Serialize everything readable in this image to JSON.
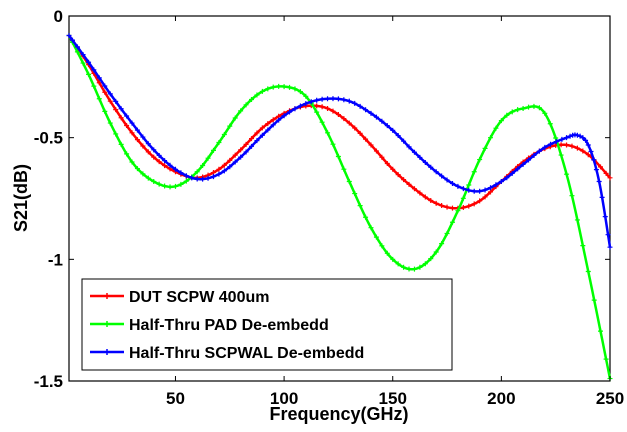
{
  "chart_data": {
    "type": "line",
    "xlabel": "Frequency(GHz)",
    "ylabel": "S21(dB)",
    "xlim": [
      1,
      250
    ],
    "ylim": [
      -1.5,
      0
    ],
    "xticks": [
      50,
      100,
      150,
      200,
      250
    ],
    "xtick_labels": [
      "50",
      "100",
      "150",
      "200",
      "250"
    ],
    "yticks": [
      0,
      -0.5,
      -1,
      -1.5
    ],
    "ytick_labels": [
      "0",
      "-0.5",
      "-1",
      "-1.5"
    ],
    "grid": false,
    "legend_position": "bottom-left",
    "series": [
      {
        "name": "DUT SCPW 400um",
        "color": "#ff0000",
        "x": [
          1,
          10,
          20,
          30,
          40,
          50,
          60,
          70,
          80,
          90,
          100,
          110,
          120,
          130,
          140,
          150,
          160,
          170,
          180,
          190,
          200,
          210,
          220,
          230,
          240,
          250
        ],
        "y": [
          -0.08,
          -0.2,
          -0.35,
          -0.48,
          -0.58,
          -0.64,
          -0.665,
          -0.63,
          -0.55,
          -0.46,
          -0.4,
          -0.37,
          -0.38,
          -0.44,
          -0.53,
          -0.63,
          -0.71,
          -0.77,
          -0.79,
          -0.76,
          -0.68,
          -0.6,
          -0.545,
          -0.53,
          -0.57,
          -0.665
        ]
      },
      {
        "name": "Half-Thru PAD De-embedd",
        "color": "#00ff00",
        "x": [
          1,
          10,
          20,
          30,
          40,
          50,
          60,
          70,
          80,
          90,
          100,
          110,
          120,
          130,
          140,
          150,
          160,
          170,
          180,
          190,
          200,
          210,
          220,
          230,
          240,
          250
        ],
        "y": [
          -0.08,
          -0.24,
          -0.44,
          -0.6,
          -0.68,
          -0.7,
          -0.64,
          -0.52,
          -0.39,
          -0.31,
          -0.29,
          -0.33,
          -0.48,
          -0.68,
          -0.87,
          -1.0,
          -1.04,
          -0.97,
          -0.8,
          -0.59,
          -0.43,
          -0.38,
          -0.4,
          -0.65,
          -1.05,
          -1.49
        ]
      },
      {
        "name": "Half-Thru SCPWAL De-embedd",
        "color": "#0000ff",
        "x": [
          1,
          10,
          20,
          30,
          40,
          50,
          60,
          70,
          80,
          90,
          100,
          110,
          120,
          130,
          140,
          150,
          160,
          170,
          180,
          190,
          200,
          210,
          220,
          230,
          235,
          240,
          245,
          250
        ],
        "y": [
          -0.08,
          -0.19,
          -0.32,
          -0.44,
          -0.55,
          -0.63,
          -0.67,
          -0.65,
          -0.58,
          -0.49,
          -0.41,
          -0.36,
          -0.34,
          -0.35,
          -0.4,
          -0.47,
          -0.56,
          -0.64,
          -0.7,
          -0.72,
          -0.68,
          -0.61,
          -0.54,
          -0.5,
          -0.49,
          -0.53,
          -0.68,
          -0.95
        ]
      }
    ]
  }
}
